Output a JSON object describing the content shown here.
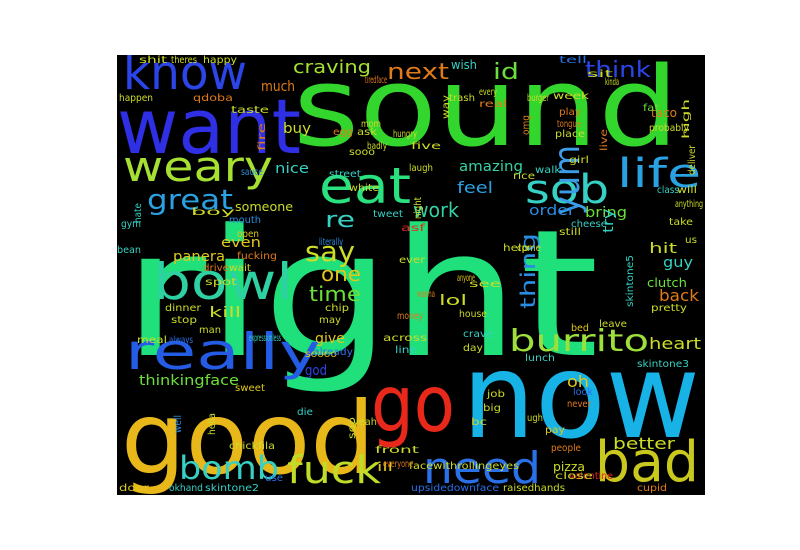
{
  "words": [
    {
      "text": "right",
      "color": "#1fe07a"
    },
    {
      "text": "now",
      "color": "#17b2e6"
    },
    {
      "text": "sound",
      "color": "#33d62c"
    },
    {
      "text": "good",
      "color": "#e8b81b"
    },
    {
      "text": "want",
      "color": "#2f2fe6"
    },
    {
      "text": "go",
      "color": "#e8281b"
    },
    {
      "text": "know",
      "color": "#2b45e8"
    },
    {
      "text": "bad",
      "color": "#c8c81e"
    },
    {
      "text": "weary",
      "color": "#a6e033"
    },
    {
      "text": "bowl",
      "color": "#2ed1a1"
    },
    {
      "text": "really",
      "color": "#245ce6"
    },
    {
      "text": "need",
      "color": "#2a70e8"
    },
    {
      "text": "eat",
      "color": "#2be07e"
    },
    {
      "text": "sob",
      "color": "#36d1c4"
    },
    {
      "text": "fuck",
      "color": "#bedc28"
    },
    {
      "text": "bomb",
      "color": "#36d1c4"
    },
    {
      "text": "burrito",
      "color": "#9ee03a"
    },
    {
      "text": "life",
      "color": "#2aa1e0"
    },
    {
      "text": "yum",
      "color": "#3c9ce8"
    },
    {
      "text": "great",
      "color": "#2aa1e0"
    },
    {
      "text": "say",
      "color": "#cddc28"
    },
    {
      "text": "next",
      "color": "#e07a1a"
    },
    {
      "text": "think",
      "color": "#2b45e8"
    },
    {
      "text": "craving",
      "color": "#a6e033"
    },
    {
      "text": "id",
      "color": "#6ce03a"
    },
    {
      "text": "time",
      "color": "#6ce03a"
    },
    {
      "text": "one",
      "color": "#e0c81a"
    },
    {
      "text": "work",
      "color": "#36d1a4"
    },
    {
      "text": "thing",
      "color": "#2a8ce0"
    },
    {
      "text": "re",
      "color": "#36d1c4"
    },
    {
      "text": "thinkingface",
      "color": "#6ce03a"
    },
    {
      "text": "heart",
      "color": "#cddc28"
    },
    {
      "text": "better",
      "color": "#cddc28"
    },
    {
      "text": "amazing",
      "color": "#36d1a4"
    },
    {
      "text": "feel",
      "color": "#2aa1e0"
    },
    {
      "text": "lol",
      "color": "#cddc28"
    },
    {
      "text": "oh",
      "color": "#e0c81a"
    },
    {
      "text": "back",
      "color": "#e07a1a"
    },
    {
      "text": "hit",
      "color": "#cddc28"
    },
    {
      "text": "guy",
      "color": "#36d1c4"
    },
    {
      "text": "order",
      "color": "#2a8ce0"
    },
    {
      "text": "bring",
      "color": "#6ce03a"
    },
    {
      "text": "try",
      "color": "#36d1c4"
    },
    {
      "text": "much",
      "color": "#e07a1a"
    },
    {
      "text": "buy",
      "color": "#cddc28"
    },
    {
      "text": "nice",
      "color": "#36d1c4"
    },
    {
      "text": "someone",
      "color": "#cddc28"
    },
    {
      "text": "even",
      "color": "#e0c81a"
    },
    {
      "text": "panera",
      "color": "#e0c81a"
    },
    {
      "text": "kill",
      "color": "#cddc28"
    },
    {
      "text": "give",
      "color": "#e0c81a"
    },
    {
      "text": "god",
      "color": "#2b45e8"
    },
    {
      "text": "wish",
      "color": "#36d1c4"
    },
    {
      "text": "ill",
      "color": "#e0c81a"
    },
    {
      "text": "pizza",
      "color": "#cddc28"
    },
    {
      "text": "facewithrollingeyes",
      "color": "#cddc28"
    },
    {
      "text": "upsidedownface",
      "color": "#2a70e8"
    },
    {
      "text": "raisedhands",
      "color": "#cddc28"
    },
    {
      "text": "valentine",
      "color": "#e8281b"
    },
    {
      "text": "okhand",
      "color": "#36d1c4"
    },
    {
      "text": "skintone2",
      "color": "#36d1c4"
    },
    {
      "text": "chickfila",
      "color": "#cddc28"
    },
    {
      "text": "skintone3",
      "color": "#36d1c4"
    },
    {
      "text": "skintone5",
      "color": "#36d1c4"
    },
    {
      "text": "clutch",
      "color": "#6ce03a"
    },
    {
      "text": "taco",
      "color": "#e07a1a"
    },
    {
      "text": "cheese",
      "color": "#36d1c4"
    },
    {
      "text": "yeah",
      "color": "#cddc28"
    },
    {
      "text": "sweet",
      "color": "#e0c81a"
    },
    {
      "text": "dinner",
      "color": "#cddc28"
    },
    {
      "text": "stop",
      "color": "#cddc28"
    },
    {
      "text": "man",
      "color": "#cddc28"
    },
    {
      "text": "gym",
      "color": "#36d1c4"
    },
    {
      "text": "hate",
      "color": "#36d1c4"
    },
    {
      "text": "bean",
      "color": "#36d1c4"
    },
    {
      "text": "mouth",
      "color": "#2a8ce0"
    },
    {
      "text": "open",
      "color": "#e0c81a"
    },
    {
      "text": "fucking",
      "color": "#e07a1a"
    },
    {
      "text": "drive",
      "color": "#e07a1a"
    },
    {
      "text": "wait",
      "color": "#cddc28"
    },
    {
      "text": "tweet",
      "color": "#36d1c4"
    },
    {
      "text": "street",
      "color": "#36d1c4"
    },
    {
      "text": "white",
      "color": "#cddc28"
    },
    {
      "text": "sooo",
      "color": "#cddc28"
    },
    {
      "text": "soooo",
      "color": "#e0c81a"
    },
    {
      "text": "may",
      "color": "#cddc28"
    },
    {
      "text": "chip",
      "color": "#cddc28"
    },
    {
      "text": "already",
      "color": "#2a70e8"
    },
    {
      "text": "across",
      "color": "#cddc28"
    },
    {
      "text": "line",
      "color": "#36d1c4"
    },
    {
      "text": "crave",
      "color": "#36d1c4"
    },
    {
      "text": "day",
      "color": "#cddc28"
    },
    {
      "text": "lunch",
      "color": "#36d1c4"
    },
    {
      "text": "bed",
      "color": "#e0c81a"
    },
    {
      "text": "leave",
      "color": "#cddc28"
    },
    {
      "text": "pretty",
      "color": "#cddc28"
    },
    {
      "text": "take",
      "color": "#cddc28"
    },
    {
      "text": "us",
      "color": "#cddc28"
    },
    {
      "text": "anything",
      "color": "#cddc28"
    },
    {
      "text": "will",
      "color": "#cddc28"
    },
    {
      "text": "deliver",
      "color": "#cddc28"
    },
    {
      "text": "class",
      "color": "#36d1c4"
    },
    {
      "text": "fat",
      "color": "#6ce03a"
    },
    {
      "text": "play",
      "color": "#e07a1a"
    },
    {
      "text": "place",
      "color": "#cddc28"
    },
    {
      "text": "girl",
      "color": "#cddc28"
    },
    {
      "text": "walk",
      "color": "#36d1c4"
    },
    {
      "text": "rice",
      "color": "#cddc28"
    },
    {
      "text": "asf",
      "color": "#e8281b"
    },
    {
      "text": "night",
      "color": "#cddc28"
    },
    {
      "text": "laugh",
      "color": "#cddc28"
    },
    {
      "text": "help",
      "color": "#cddc28"
    },
    {
      "text": "come",
      "color": "#cddc28"
    },
    {
      "text": "still",
      "color": "#cddc28"
    },
    {
      "text": "ever",
      "color": "#cddc28"
    },
    {
      "text": "anyone",
      "color": "#e0c81a"
    },
    {
      "text": "see",
      "color": "#cddc28"
    },
    {
      "text": "wanna",
      "color": "#e07a1a"
    },
    {
      "text": "money",
      "color": "#e07a1a"
    },
    {
      "text": "house",
      "color": "#cddc28"
    },
    {
      "text": "spot",
      "color": "#cddc28"
    },
    {
      "text": "literally",
      "color": "#2a8ce0"
    },
    {
      "text": "boy",
      "color": "#cddc28"
    },
    {
      "text": "sauce",
      "color": "#2a8ce0"
    },
    {
      "text": "fire",
      "color": "#e07a1a"
    },
    {
      "text": "egg",
      "color": "#e07a1a"
    },
    {
      "text": "ask",
      "color": "#cddc28"
    },
    {
      "text": "mom",
      "color": "#cddc28"
    },
    {
      "text": "badly",
      "color": "#cddc28"
    },
    {
      "text": "hungry",
      "color": "#cddc28"
    },
    {
      "text": "five",
      "color": "#cddc28"
    },
    {
      "text": "tiredface",
      "color": "#e07a1a"
    },
    {
      "text": "qdoba",
      "color": "#e07a1a"
    },
    {
      "text": "happen",
      "color": "#cddc28"
    },
    {
      "text": "taste",
      "color": "#cddc28"
    },
    {
      "text": "shit",
      "color": "#cddc28"
    },
    {
      "text": "theres",
      "color": "#cddc28"
    },
    {
      "text": "happy",
      "color": "#cddc28"
    },
    {
      "text": "trash",
      "color": "#cddc28"
    },
    {
      "text": "way",
      "color": "#cddc28"
    },
    {
      "text": "every",
      "color": "#cddc28"
    },
    {
      "text": "real",
      "color": "#e07a1a"
    },
    {
      "text": "burger",
      "color": "#cddc28"
    },
    {
      "text": "week",
      "color": "#cddc28"
    },
    {
      "text": "sit",
      "color": "#cddc28"
    },
    {
      "text": "kinda",
      "color": "#cddc28"
    },
    {
      "text": "tell",
      "color": "#2a70e8"
    },
    {
      "text": "omg",
      "color": "#e07a1a"
    },
    {
      "text": "tongue",
      "color": "#e07a1a"
    },
    {
      "text": "probably",
      "color": "#cddc28"
    },
    {
      "text": "high",
      "color": "#cddc28"
    },
    {
      "text": "live",
      "color": "#e07a1a"
    },
    {
      "text": "job",
      "color": "#cddc28"
    },
    {
      "text": "big",
      "color": "#cddc28"
    },
    {
      "text": "bc",
      "color": "#cddc28"
    },
    {
      "text": "ugh",
      "color": "#cddc28"
    },
    {
      "text": "pay",
      "color": "#e0c81a"
    },
    {
      "text": "look",
      "color": "#2a70e8"
    },
    {
      "text": "never",
      "color": "#e07a1a"
    },
    {
      "text": "people",
      "color": "#e07a1a"
    },
    {
      "text": "close",
      "color": "#cddc28"
    },
    {
      "text": "cupid",
      "color": "#e07a1a"
    },
    {
      "text": "everyone",
      "color": "#e07a1a"
    },
    {
      "text": "front",
      "color": "#cddc28"
    },
    {
      "text": "door",
      "color": "#e0c81a"
    },
    {
      "text": "soo",
      "color": "#cddc28"
    },
    {
      "text": "use",
      "color": "#2a70e8"
    },
    {
      "text": "die",
      "color": "#36d1c4"
    },
    {
      "text": "well",
      "color": "#2a8ce0"
    },
    {
      "text": "hella",
      "color": "#cddc28"
    },
    {
      "text": "meal",
      "color": "#cddc28"
    },
    {
      "text": "always",
      "color": "#2a70e8"
    },
    {
      "text": "expressionless",
      "color": "#36d1c4"
    }
  ]
}
